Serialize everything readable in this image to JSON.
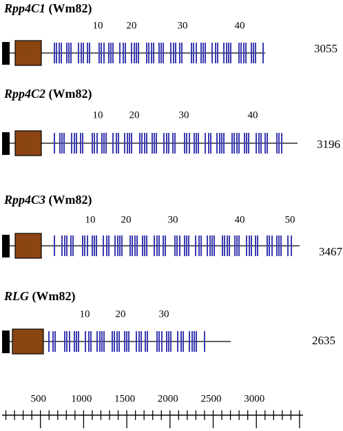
{
  "genes": [
    {
      "name": "Rpp4C1",
      "suffix": "(Wm82)",
      "markers": [
        "10",
        "20",
        "30",
        "40"
      ],
      "length": "3055"
    },
    {
      "name": "Rpp4C2",
      "suffix": "(Wm82)",
      "markers": [
        "10",
        "20",
        "30",
        "40"
      ],
      "length": "3196"
    },
    {
      "name": "Rpp4C3",
      "suffix": "(Wm82)",
      "markers": [
        "10",
        "20",
        "30",
        "40",
        "50"
      ],
      "length": "3467"
    },
    {
      "name": "RLG",
      "suffix": "(Wm82)",
      "markers": [
        "10",
        "20",
        "30"
      ],
      "length": "2635"
    }
  ],
  "scale": {
    "labels": [
      "500",
      "1000",
      "1500",
      "2000",
      "2500",
      "3000"
    ]
  }
}
